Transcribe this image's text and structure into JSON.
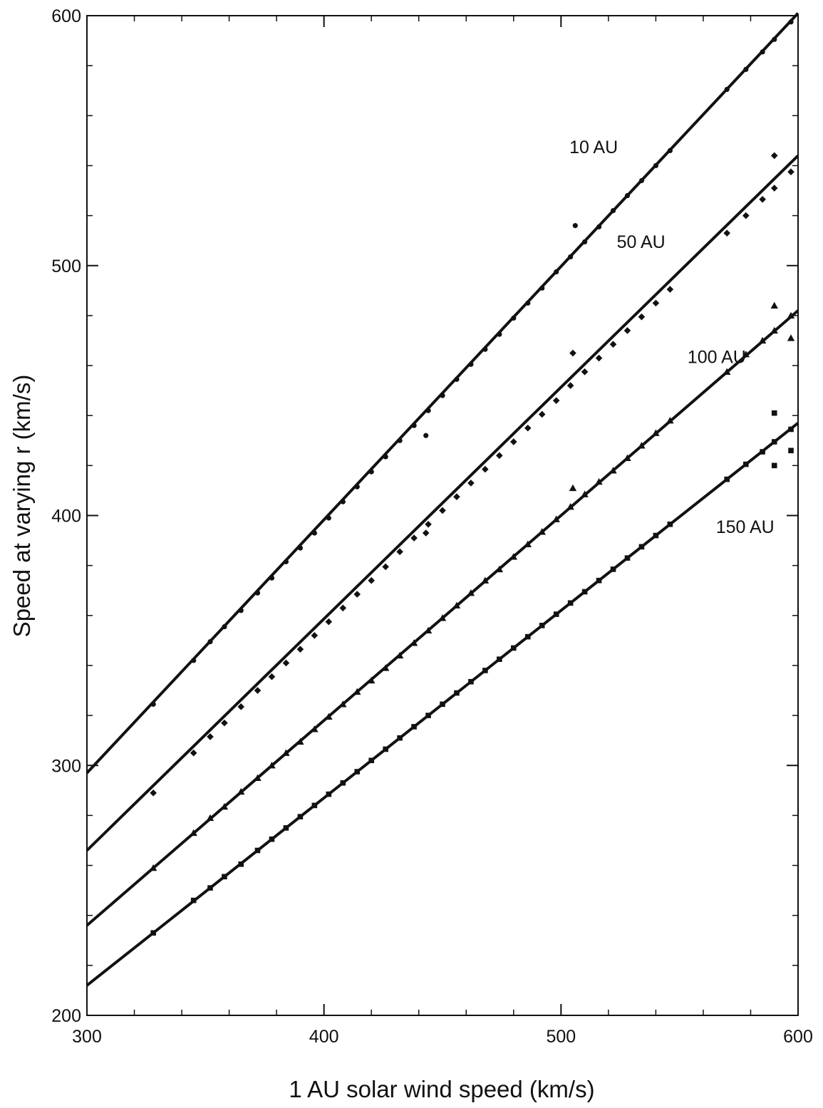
{
  "chart_data": {
    "type": "scatter",
    "xlabel": "1 AU solar wind speed (km/s)",
    "ylabel": "Speed at varying r (km/s)",
    "xlim": [
      300,
      600
    ],
    "ylim": [
      200,
      600
    ],
    "x_ticks": [
      300,
      400,
      500,
      600
    ],
    "y_ticks": [
      200,
      300,
      400,
      500,
      600
    ],
    "x_minor_step": 20,
    "y_minor_step": 20,
    "grid": false,
    "legend": "none",
    "x_points": [
      328,
      345,
      352,
      358,
      365,
      372,
      378,
      384,
      390,
      396,
      402,
      408,
      414,
      420,
      426,
      432,
      438,
      444,
      450,
      456,
      462,
      468,
      474,
      480,
      486,
      492,
      498,
      504,
      510,
      516,
      522,
      528,
      534,
      540,
      546,
      570,
      578,
      585,
      590,
      597
    ],
    "series": [
      {
        "name": "10 AU",
        "marker": "circle",
        "fit": [
          300,
          297,
          600,
          601
        ],
        "y": [
          324.5,
          342,
          349.5,
          355.5,
          362,
          369,
          375,
          381.5,
          387,
          393,
          399,
          405.5,
          411.5,
          417.5,
          423.5,
          430,
          436,
          442,
          448,
          454.5,
          460.5,
          466.5,
          472.5,
          479,
          485,
          491,
          497.5,
          503.5,
          509.5,
          515.5,
          522,
          528,
          534,
          540,
          546,
          570.5,
          578.5,
          585.5,
          590.5,
          597.5
        ]
      },
      {
        "name": "50 AU",
        "marker": "diamond",
        "fit": [
          300,
          266,
          600,
          544
        ],
        "y": [
          289,
          305,
          311.5,
          317,
          323.5,
          330,
          335.5,
          341,
          346.5,
          352,
          357.5,
          363,
          368.5,
          374,
          379.5,
          385.5,
          391,
          396.5,
          402,
          407.5,
          413,
          418.5,
          424,
          429.5,
          435,
          440.5,
          446,
          452,
          457.5,
          463,
          468.5,
          474,
          479.5,
          485,
          490.5,
          513,
          520,
          526.5,
          531,
          537.5
        ]
      },
      {
        "name": "100 AU",
        "marker": "triangle",
        "fit": [
          300,
          236,
          600,
          482
        ],
        "y": [
          259,
          273,
          279,
          283.5,
          289.5,
          295,
          300,
          305,
          309.5,
          314.5,
          319.5,
          324.5,
          329.5,
          334,
          339,
          344,
          349,
          354,
          359,
          364,
          369,
          374,
          378.5,
          383.5,
          388.5,
          393.5,
          398.5,
          403.5,
          408.5,
          413.5,
          418,
          423,
          428,
          433,
          438,
          457.5,
          464.5,
          470,
          474,
          480
        ]
      },
      {
        "name": "150 AU",
        "marker": "square",
        "fit": [
          300,
          212,
          600,
          437
        ],
        "y": [
          233,
          246,
          251,
          255.5,
          260.5,
          266,
          270.5,
          275,
          279.5,
          284,
          288.5,
          293,
          297.5,
          302,
          306.5,
          311,
          315.5,
          320,
          324.5,
          329,
          333.5,
          338,
          342.5,
          347,
          351.5,
          356,
          360.5,
          365,
          369.5,
          374,
          378.5,
          383,
          387.5,
          392,
          396.5,
          414.5,
          420.5,
          425.5,
          429.5,
          434.5
        ]
      }
    ],
    "outliers": [
      {
        "series": "10 AU",
        "points": [
          [
            443,
            432
          ],
          [
            506,
            516
          ]
        ]
      },
      {
        "series": "50 AU",
        "points": [
          [
            443,
            393
          ],
          [
            505,
            465
          ],
          [
            590,
            544
          ]
        ]
      },
      {
        "series": "100 AU",
        "points": [
          [
            505,
            411
          ],
          [
            590,
            484
          ],
          [
            597,
            471
          ]
        ]
      },
      {
        "series": "150 AU",
        "points": [
          [
            590,
            441
          ],
          [
            590,
            420
          ],
          [
            597,
            426
          ]
        ]
      }
    ],
    "annotations": [
      {
        "text": "10 AU",
        "x": 524,
        "y": 545,
        "anchor": "end"
      },
      {
        "text": "50 AU",
        "x": 544,
        "y": 507,
        "anchor": "end"
      },
      {
        "text": "100 AU",
        "x": 578,
        "y": 461,
        "anchor": "end"
      },
      {
        "text": "150 AU",
        "x": 590,
        "y": 393,
        "anchor": "end"
      }
    ]
  }
}
